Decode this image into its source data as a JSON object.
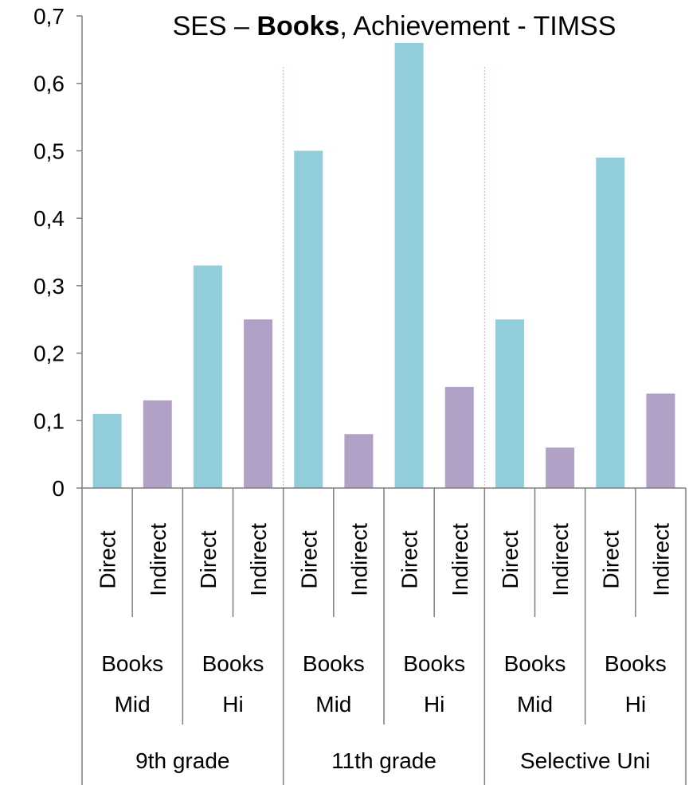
{
  "chart_data": {
    "type": "bar",
    "title": {
      "prefix": "SES – ",
      "bold": "Books",
      "suffix": ", Achievement - TIMSS"
    },
    "xlabel": "",
    "ylabel": "",
    "ylim": [
      0,
      0.7
    ],
    "yticks": [
      "0",
      "0,1",
      "0,2",
      "0,3",
      "0,4",
      "0,5",
      "0,6",
      "0,7"
    ],
    "grid": false,
    "legend": "none",
    "categories": [
      "Direct",
      "Indirect",
      "Direct",
      "Indirect",
      "Direct",
      "Indirect",
      "Direct",
      "Indirect",
      "Direct",
      "Indirect",
      "Direct",
      "Indirect"
    ],
    "values": [
      0.11,
      0.13,
      0.33,
      0.25,
      0.5,
      0.08,
      0.66,
      0.15,
      0.25,
      0.06,
      0.49,
      0.14
    ],
    "subgroups": [
      {
        "line1": "Books",
        "line2": "Mid"
      },
      {
        "line1": "Books",
        "line2": "Hi"
      },
      {
        "line1": "Books",
        "line2": "Mid"
      },
      {
        "line1": "Books",
        "line2": "Hi"
      },
      {
        "line1": "Books",
        "line2": "Mid"
      },
      {
        "line1": "Books",
        "line2": "Hi"
      }
    ],
    "groups": [
      "9th grade",
      "11th grade",
      "Selective Uni"
    ],
    "colors": {
      "Direct": "#92cddc",
      "Indirect": "#b2a1c7",
      "separator": "#e6a0a8",
      "axis": "#7f7f7f"
    }
  }
}
